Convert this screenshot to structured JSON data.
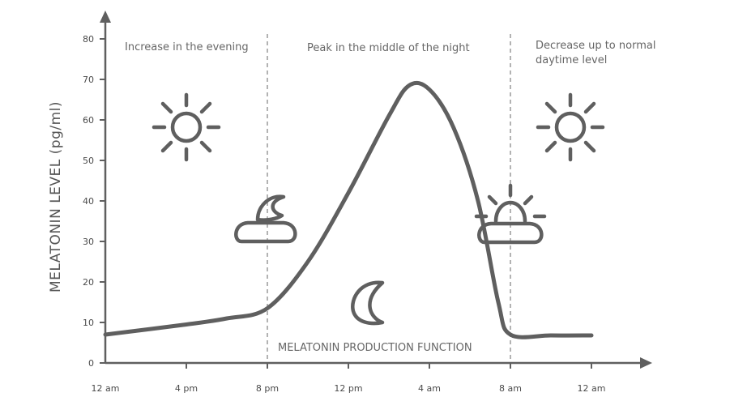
{
  "chart_data": {
    "type": "line",
    "title": "",
    "xlabel": "",
    "ylabel": "MELATONIN LEVEL (pg/ml)",
    "ylim": [
      0,
      80
    ],
    "yticks": [
      0,
      10,
      20,
      30,
      40,
      50,
      60,
      70,
      80
    ],
    "xtick_labels": [
      "12 am",
      "4 pm",
      "8 pm",
      "12 pm",
      "4 am",
      "8 am",
      "12 am"
    ],
    "series": [
      {
        "name": "MELATONIN PRODUCTION FUNCTION",
        "points": [
          {
            "x": 0,
            "y": 7
          },
          {
            "x": 1,
            "y": 9.5
          },
          {
            "x": 1.5,
            "y": 11
          },
          {
            "x": 2,
            "y": 13.5
          },
          {
            "x": 2.5,
            "y": 25
          },
          {
            "x": 3,
            "y": 42
          },
          {
            "x": 3.5,
            "y": 61
          },
          {
            "x": 3.75,
            "y": 68.5
          },
          {
            "x": 4,
            "y": 67.5
          },
          {
            "x": 4.3,
            "y": 58
          },
          {
            "x": 4.6,
            "y": 40
          },
          {
            "x": 4.85,
            "y": 15
          },
          {
            "x": 5,
            "y": 7
          },
          {
            "x": 5.5,
            "y": 6.8
          },
          {
            "x": 6,
            "y": 6.8
          }
        ]
      }
    ],
    "phases": [
      {
        "label": "Increase in the evening"
      },
      {
        "label": "Peak in the middle of the night"
      },
      {
        "label_line1": "Decrease up to normal",
        "label_line2": "daytime level"
      }
    ],
    "dividers_at_tick_index": [
      2,
      5
    ],
    "icons": [
      "sun-icon",
      "moon-cloud-icon",
      "crescent-moon-icon",
      "sunrise-cloud-icon",
      "sun-icon"
    ],
    "grid": false,
    "colors": {
      "line": "#5f5f5f",
      "axis": "#5f5f5f",
      "divider": "#8a8a8a"
    }
  }
}
